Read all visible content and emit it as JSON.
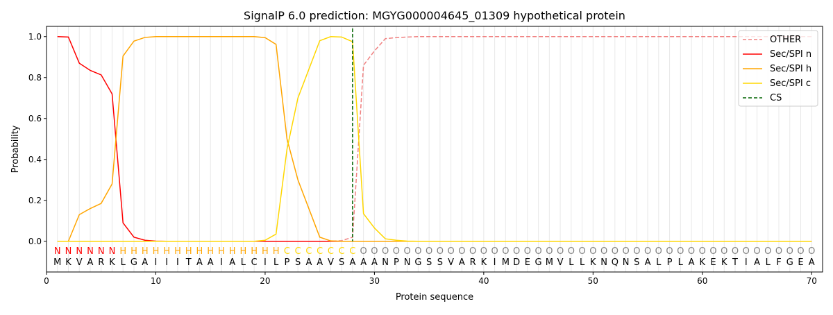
{
  "chart_data": {
    "type": "line",
    "title": "SignalP 6.0 prediction: MGYG000004645_01309 hypothetical protein",
    "xlabel": "Protein sequence",
    "ylabel": "Probability",
    "xlim": [
      0,
      71
    ],
    "ylim": [
      -0.15,
      1.05
    ],
    "xticks": [
      0,
      10,
      20,
      30,
      40,
      50,
      60,
      70
    ],
    "yticks": [
      0.0,
      0.2,
      0.4,
      0.6,
      0.8,
      1.0
    ],
    "legend_position": "top-right",
    "sequence": "MKVARKLGAIIITAAIALCILPSAAVSAAANPNGSSVARKIMDEGMVLLKNQNSALPLAKEKTIALFGEA",
    "labels": "NNNNNNHHHHHHHHHHHHHHHCCCCCCCOOOOOOOOOOOOOOOOOOOOOOOOOOOOOOOOOOOOOOOOOO",
    "label_colors": {
      "N": "#ff0000",
      "H": "#ffa500",
      "C": "#ffd700",
      "O": "#808080"
    },
    "cs_position": 28,
    "series": [
      {
        "name": "OTHER",
        "color": "#f08080",
        "dash": true,
        "values": [
          0,
          0,
          0,
          0,
          0,
          0,
          0,
          0,
          0,
          0,
          0,
          0,
          0,
          0,
          0,
          0,
          0,
          0,
          0,
          0,
          0,
          0,
          0,
          0,
          0,
          0,
          0.003,
          0.02,
          0.86,
          0.93,
          0.99,
          0.995,
          0.998,
          1,
          1,
          1,
          1,
          1,
          1,
          1,
          1,
          1,
          1,
          1,
          1,
          1,
          1,
          1,
          1,
          1,
          1,
          1,
          1,
          1,
          1,
          1,
          1,
          1,
          1,
          1,
          1,
          1,
          1,
          1,
          1,
          1,
          1,
          1,
          1,
          1
        ]
      },
      {
        "name": "Sec/SPI n",
        "color": "#ff0000",
        "values": [
          1.0,
          0.998,
          0.87,
          0.835,
          0.813,
          0.72,
          0.09,
          0.02,
          0.005,
          0.001,
          0,
          0,
          0,
          0,
          0,
          0,
          0,
          0,
          0,
          0,
          0,
          0,
          0,
          0,
          0,
          0,
          0,
          0,
          0,
          0,
          0,
          0,
          0,
          0,
          0,
          0,
          0,
          0,
          0,
          0,
          0,
          0,
          0,
          0,
          0,
          0,
          0,
          0,
          0,
          0,
          0,
          0,
          0,
          0,
          0,
          0,
          0,
          0,
          0,
          0,
          0,
          0,
          0,
          0,
          0,
          0,
          0,
          0,
          0,
          0
        ]
      },
      {
        "name": "Sec/SPI h",
        "color": "#ffa500",
        "values": [
          0,
          0,
          0.13,
          0.16,
          0.185,
          0.28,
          0.905,
          0.978,
          0.996,
          1,
          1,
          1,
          1,
          1,
          1,
          1,
          1,
          1,
          1,
          0.995,
          0.962,
          0.5,
          0.3,
          0.16,
          0.02,
          0.002,
          0,
          0,
          0,
          0,
          0,
          0,
          0,
          0,
          0,
          0,
          0,
          0,
          0,
          0,
          0,
          0,
          0,
          0,
          0,
          0,
          0,
          0,
          0,
          0,
          0,
          0,
          0,
          0,
          0,
          0,
          0,
          0,
          0,
          0,
          0,
          0,
          0,
          0,
          0,
          0,
          0,
          0,
          0,
          0
        ]
      },
      {
        "name": "Sec/SPI c",
        "color": "#ffd700",
        "values": [
          0,
          0,
          0,
          0,
          0,
          0,
          0,
          0,
          0,
          0,
          0,
          0,
          0,
          0,
          0,
          0,
          0,
          0,
          0,
          0.005,
          0.035,
          0.45,
          0.7,
          0.84,
          0.98,
          1.0,
          0.998,
          0.975,
          0.135,
          0.065,
          0.012,
          0.005,
          0.001,
          0,
          0,
          0,
          0,
          0,
          0,
          0,
          0,
          0,
          0,
          0,
          0,
          0,
          0,
          0,
          0,
          0,
          0,
          0,
          0,
          0,
          0,
          0,
          0,
          0,
          0,
          0,
          0,
          0,
          0,
          0,
          0,
          0,
          0,
          0,
          0,
          0
        ]
      }
    ],
    "cs_legend": {
      "name": "CS",
      "color": "#006400"
    }
  }
}
